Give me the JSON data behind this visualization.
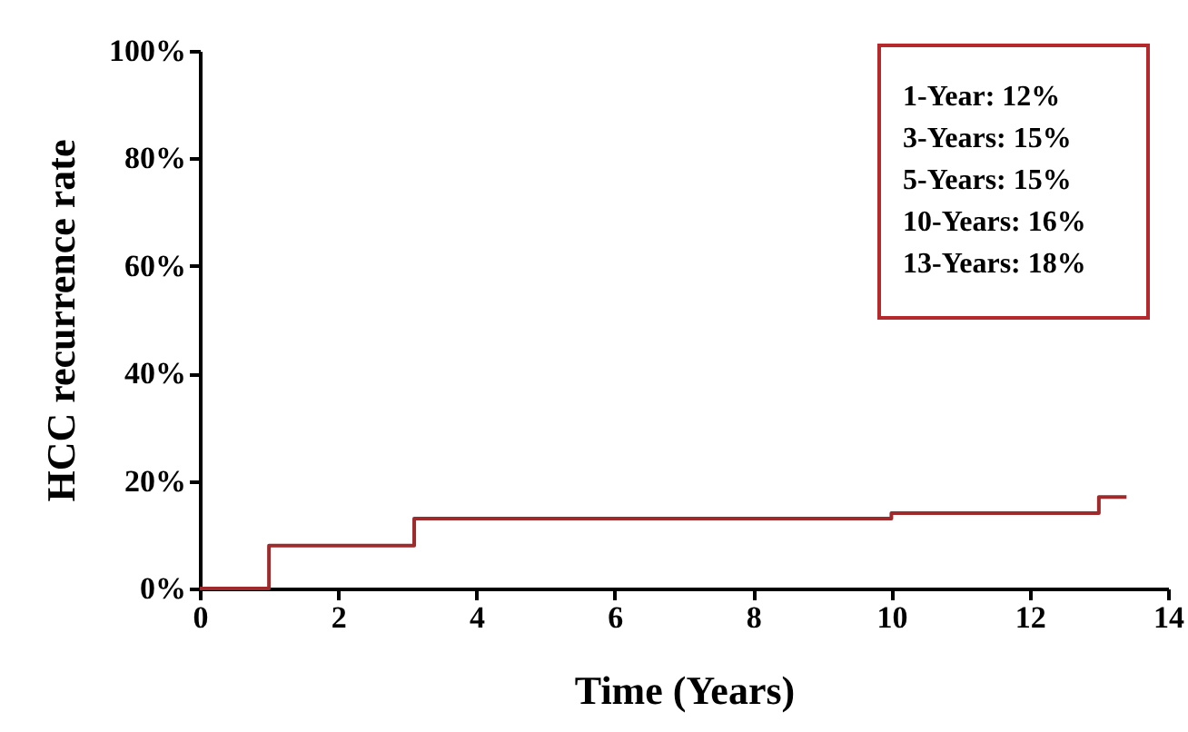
{
  "chart_data": {
    "type": "step",
    "xlabel": "Time (Years)",
    "ylabel": "HCC recurrence rate",
    "x": [
      0,
      1,
      3.1,
      10,
      13,
      13.4
    ],
    "series": [
      {
        "color": "#9e2a2b",
        "values": [
          0,
          8,
          13,
          14,
          17,
          17
        ]
      }
    ],
    "xlim": [
      0,
      14
    ],
    "xticks": [
      0,
      2,
      4,
      6,
      8,
      10,
      12,
      14
    ],
    "ylim": [
      0,
      100
    ],
    "yticks": [
      {
        "value": 0,
        "label": "0%"
      },
      {
        "value": 20,
        "label": "20%"
      },
      {
        "value": 40,
        "label": "40%"
      },
      {
        "value": 60,
        "label": "60%"
      },
      {
        "value": 80,
        "label": "80%"
      },
      {
        "value": 100,
        "label": "100%"
      }
    ],
    "grid": false,
    "marker": "none",
    "line_style": "solid",
    "annotations": [
      "1-Year: 12%",
      "3-Years: 15%",
      "5-Years: 15%",
      "10-Years: 16%",
      "13-Years: 18%"
    ]
  }
}
